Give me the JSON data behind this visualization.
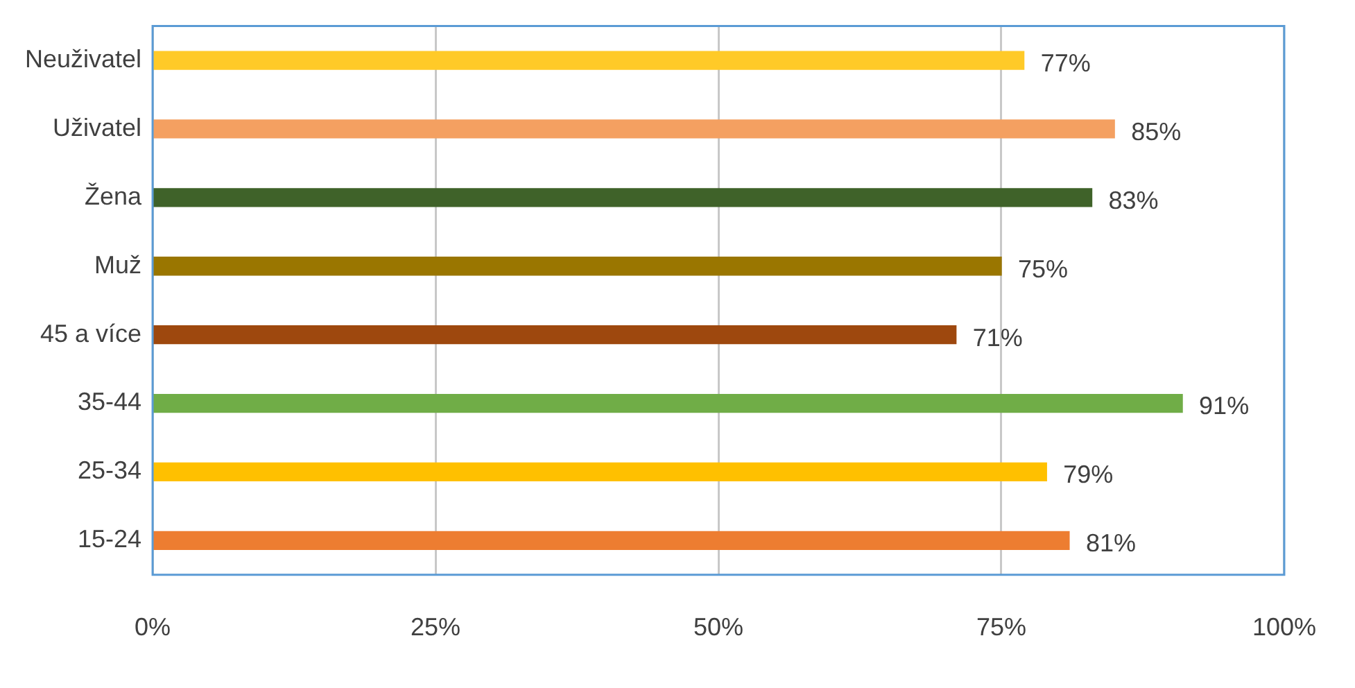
{
  "chart_data": {
    "type": "bar",
    "orientation": "horizontal",
    "categories": [
      "Neuživatel",
      "Uživatel",
      "Žena",
      "Muž",
      "45 a více",
      "35-44",
      "25-34",
      "15-24"
    ],
    "values": [
      77,
      85,
      83,
      75,
      71,
      91,
      79,
      81
    ],
    "colors": [
      "#ffca28",
      "#f4a061",
      "#3f6229",
      "#9a7600",
      "#9e480e",
      "#70ad47",
      "#ffc000",
      "#ed7d31"
    ],
    "xlim": [
      0,
      100
    ],
    "xticks": [
      {
        "value": 0,
        "label": "0%"
      },
      {
        "value": 25,
        "label": "25%"
      },
      {
        "value": 50,
        "label": "50%"
      },
      {
        "value": 75,
        "label": "75%"
      },
      {
        "value": 100,
        "label": "100%"
      }
    ],
    "value_labels": [
      "77%",
      "85%",
      "83%",
      "75%",
      "71%",
      "91%",
      "79%",
      "81%"
    ],
    "grid": "x",
    "legend": false
  }
}
